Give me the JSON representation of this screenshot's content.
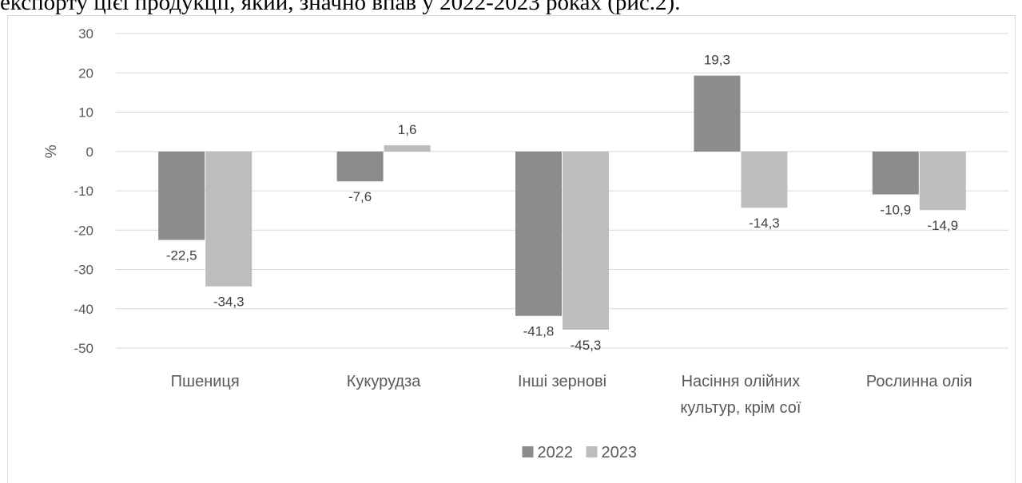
{
  "document": {
    "top_text": "експорту цієї продукції, який, значно впав у 2022-2023 роках (рис.2)."
  },
  "chart_data": {
    "type": "bar",
    "title": "",
    "xlabel": "",
    "ylabel": "%",
    "ylim": [
      -50,
      30
    ],
    "yticks": [
      30,
      20,
      10,
      0,
      -10,
      -20,
      -30,
      -40,
      -50
    ],
    "grid": true,
    "legend_position": "bottom",
    "categories": [
      [
        "Пшениця"
      ],
      [
        "Кукурудза"
      ],
      [
        "Інші зернові"
      ],
      [
        "Насіння олійних",
        "культур, крім сої"
      ],
      [
        "Рослинна олія"
      ]
    ],
    "series": [
      {
        "name": "2022",
        "color": "#8c8c8c",
        "values": [
          -22.5,
          -7.6,
          -41.8,
          19.3,
          -10.9
        ],
        "labels": [
          "-22,5",
          "-7,6",
          "-41,8",
          "19,3",
          "-10,9"
        ]
      },
      {
        "name": "2023",
        "color": "#bdbdbd",
        "values": [
          -34.3,
          1.6,
          -45.3,
          -14.3,
          -14.9
        ],
        "labels": [
          "-34,3",
          "1,6",
          "-45,3",
          "-14,3",
          "-14,9"
        ]
      }
    ]
  }
}
